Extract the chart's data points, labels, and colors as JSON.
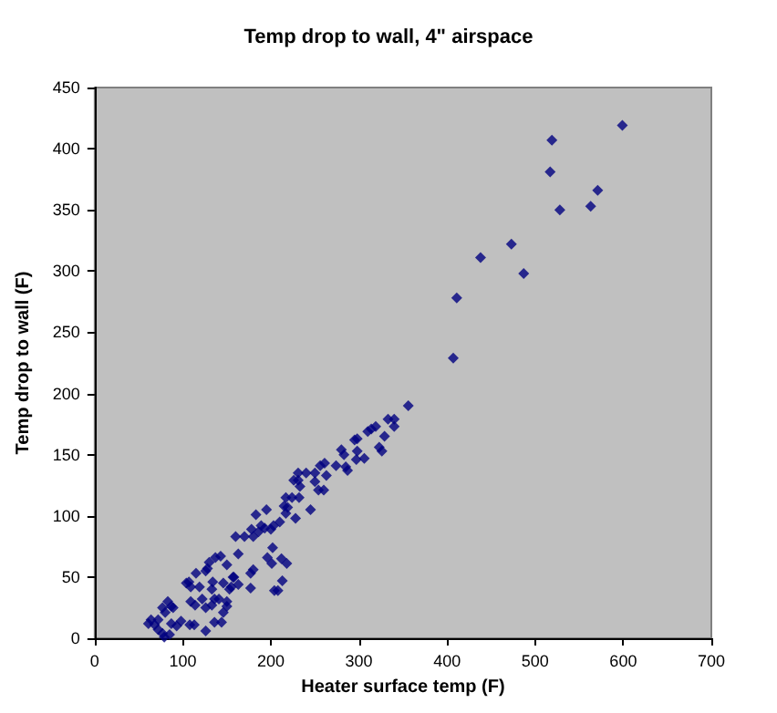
{
  "chart_data": {
    "type": "scatter",
    "title": "Temp drop to wall, 4\" airspace",
    "xlabel": "Heater surface temp (F)",
    "ylabel": "Temp drop to wall (F)",
    "x": [
      599,
      519,
      517,
      571,
      528,
      563,
      473,
      487,
      438,
      411,
      407,
      356,
      333,
      340,
      340,
      329,
      319,
      314,
      310,
      323,
      326,
      306,
      298,
      298,
      295,
      297,
      287,
      285,
      283,
      280,
      274,
      261,
      256,
      263,
      260,
      254,
      250,
      250,
      240,
      233,
      231,
      231,
      226,
      224,
      232,
      245,
      228,
      217,
      219,
      215,
      217,
      210,
      203,
      200,
      193,
      189,
      186,
      180,
      178,
      183,
      195,
      170,
      160,
      163,
      196,
      201,
      202,
      204,
      208,
      213,
      212,
      218,
      180,
      177,
      177,
      163,
      157,
      155,
      150,
      143,
      137,
      130,
      128,
      126,
      115,
      107,
      104,
      109,
      119,
      122,
      109,
      114,
      126,
      126,
      108,
      113,
      133,
      136,
      133,
      134,
      146,
      141,
      146,
      144,
      136,
      150,
      150,
      153,
      158,
      77,
      83,
      87,
      89,
      80,
      72,
      64,
      61,
      68,
      72,
      77,
      79,
      85,
      87,
      93,
      98
    ],
    "series": [
      {
        "color": "#000080",
        "values": [
          419,
          407,
          381,
          366,
          350,
          353,
          322,
          298,
          311,
          278,
          229,
          190,
          179,
          179,
          173,
          165,
          173,
          171,
          169,
          156,
          153,
          147,
          153,
          163,
          162,
          146,
          137,
          140,
          150,
          154,
          141,
          143,
          141,
          133,
          121,
          121,
          128,
          135,
          135,
          124,
          129,
          135,
          129,
          115,
          115,
          105,
          98,
          115,
          107,
          108,
          102,
          95,
          92,
          89,
          90,
          92,
          87,
          83,
          89,
          101,
          105,
          83,
          83,
          69,
          66,
          61,
          74,
          39,
          39,
          47,
          65,
          61,
          56,
          53,
          41,
          44,
          50,
          42,
          60,
          67,
          66,
          62,
          57,
          55,
          53,
          46,
          45,
          42,
          42,
          32,
          30,
          27,
          25,
          6,
          11,
          11,
          27,
          32,
          40,
          46,
          45,
          32,
          21,
          13,
          13,
          30,
          26,
          40,
          50,
          25,
          30,
          26,
          25,
          21,
          15,
          15,
          12,
          11,
          7,
          4,
          1,
          3,
          12,
          10,
          14
        ]
      }
    ],
    "xlim": [
      0,
      700
    ],
    "ylim": [
      0,
      450
    ],
    "xticks": [
      0,
      100,
      200,
      300,
      400,
      500,
      600,
      700
    ],
    "yticks": [
      0,
      50,
      100,
      150,
      200,
      250,
      300,
      350,
      400,
      450
    ],
    "grid": false,
    "marker": "diamond"
  }
}
